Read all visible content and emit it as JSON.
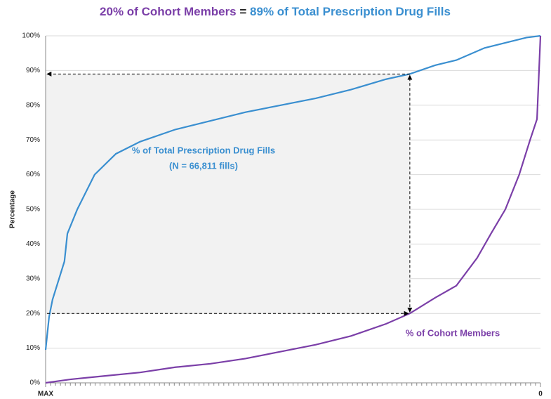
{
  "chart_data": {
    "type": "line",
    "title": [
      "20% of Cohort Members",
      "=",
      "89% of Total Prescription Drug Fills"
    ],
    "y_label": "Percentage",
    "xlim": [
      0,
      100
    ],
    "xticks": [
      {
        "value": 0,
        "label": "MAX"
      },
      {
        "value": 100,
        "label": "0"
      }
    ],
    "ylim": [
      0,
      100
    ],
    "yticks": [
      {
        "value": 0,
        "label": "0%"
      },
      {
        "value": 10,
        "label": "10%"
      },
      {
        "value": 20,
        "label": "20%"
      },
      {
        "value": 30,
        "label": "30%"
      },
      {
        "value": 40,
        "label": "40%"
      },
      {
        "value": 50,
        "label": "50%"
      },
      {
        "value": 60,
        "label": "60%"
      },
      {
        "value": 70,
        "label": "70%"
      },
      {
        "value": 80,
        "label": "80%"
      },
      {
        "value": 90,
        "label": "90%"
      },
      {
        "value": 100,
        "label": "100%"
      }
    ],
    "grid": true,
    "series": [
      {
        "name": "% of Total Prescription Drug Fills",
        "color": "#3a8fd0",
        "x": [
          0,
          0.7,
          1.4,
          3.8,
          4.4,
          6.4,
          9.9,
          14.2,
          19.1,
          26.2,
          33.3,
          40.4,
          47.5,
          54.6,
          61.7,
          68.8,
          73.6,
          78.7,
          83,
          88.7,
          92.9,
          97.2,
          100
        ],
        "values": [
          9.5,
          19,
          24,
          35,
          43,
          50,
          60,
          66,
          69.5,
          73,
          75.5,
          78,
          80,
          82,
          84.5,
          87.5,
          89,
          91.5,
          93,
          96.5,
          98,
          99.5,
          100
        ]
      },
      {
        "name": "% of Cohort Members",
        "color": "#7b3fa8",
        "x": [
          0,
          5,
          12,
          19.1,
          26.2,
          33.3,
          40.4,
          47.5,
          54.6,
          61.7,
          68.8,
          73.6,
          78.7,
          83,
          87.2,
          90,
          92.9,
          95.7,
          97.9,
          99.3,
          100
        ],
        "values": [
          0,
          1,
          2,
          3,
          4.5,
          5.5,
          7,
          9,
          11,
          13.5,
          17,
          20,
          24.5,
          28,
          36,
          43,
          50,
          60,
          70,
          76,
          100
        ]
      }
    ],
    "annotations": [
      "% of Total Prescription Drug Fills",
      "(N = 66,811 fills)",
      "% of Cohort Members"
    ],
    "marker": {
      "x": 73.6,
      "upper": 89,
      "lower": 20
    }
  }
}
